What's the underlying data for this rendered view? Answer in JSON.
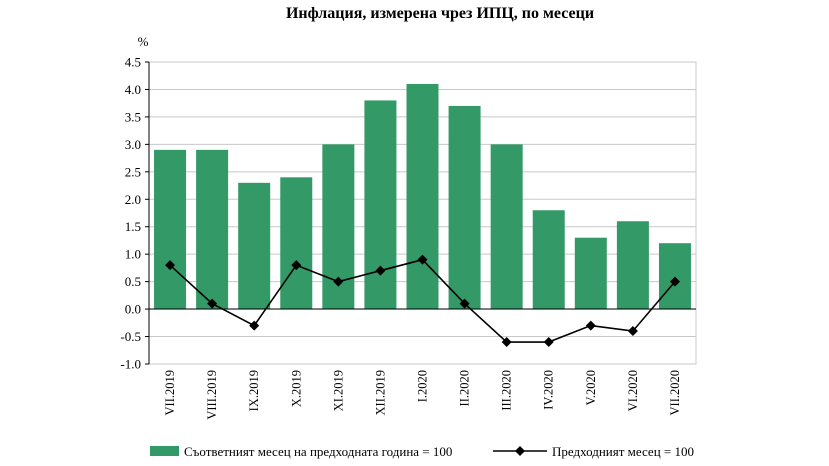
{
  "chart_data": {
    "type": "bar",
    "title": "Инфлация, измерена чрез ИПЦ, по месеци",
    "ylabel": "%",
    "xlabel": "",
    "ylim": [
      -1.0,
      4.5
    ],
    "yticks": [
      "4.5",
      "4.0",
      "3.5",
      "3.0",
      "2.5",
      "2.0",
      "1.5",
      "1.0",
      "0.5",
      "0.0",
      "-0.5",
      "-1.0"
    ],
    "categories": [
      "VII.2019",
      "VIII.2019",
      "IX.2019",
      "X.2019",
      "XI.2019",
      "XII.2019",
      "I.2020",
      "II.2020",
      "III.2020",
      "IV.2020",
      "V.2020",
      "VI.2020",
      "VII.2020"
    ],
    "grid": true,
    "legend_position": "bottom",
    "series": [
      {
        "name": "Съответният месец на предходната година = 100",
        "type": "bar",
        "color": "#339966",
        "values": [
          2.9,
          2.9,
          2.3,
          2.4,
          3.0,
          3.8,
          4.1,
          3.7,
          3.0,
          1.8,
          1.3,
          1.6,
          1.2
        ]
      },
      {
        "name": "Предходният месец = 100",
        "type": "line",
        "color": "#000000",
        "marker": "diamond",
        "values": [
          0.8,
          0.1,
          -0.3,
          0.8,
          0.5,
          0.7,
          0.9,
          0.1,
          -0.6,
          -0.6,
          -0.3,
          -0.4,
          0.5
        ]
      }
    ]
  }
}
